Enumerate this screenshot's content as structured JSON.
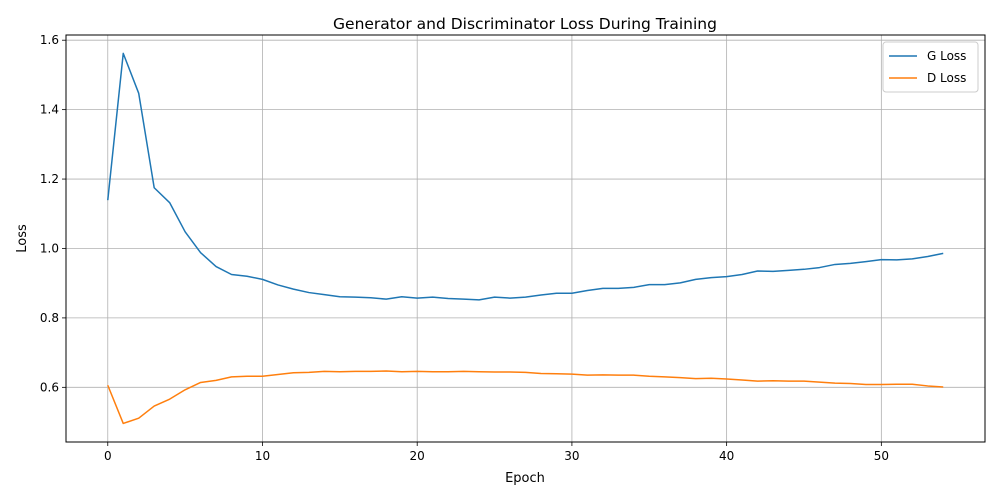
{
  "chart_data": {
    "type": "line",
    "title": "Generator and Discriminator Loss During Training",
    "xlabel": "Epoch",
    "ylabel": "Loss",
    "xlim": [
      -2.7,
      56.7
    ],
    "ylim": [
      0.4425,
      1.615
    ],
    "xticks": [
      0,
      10,
      20,
      30,
      40,
      50
    ],
    "yticks": [
      0.6,
      0.8,
      1.0,
      1.2,
      1.4,
      1.6
    ],
    "ytick_labels": [
      "0.6",
      "0.8",
      "1.0",
      "1.2",
      "1.4",
      "1.6"
    ],
    "grid": true,
    "legend_position": "top-right",
    "x": [
      0,
      1,
      2,
      3,
      4,
      5,
      6,
      7,
      8,
      9,
      10,
      11,
      12,
      13,
      14,
      15,
      16,
      17,
      18,
      19,
      20,
      21,
      22,
      23,
      24,
      25,
      26,
      27,
      28,
      29,
      30,
      31,
      32,
      33,
      34,
      35,
      36,
      37,
      38,
      39,
      40,
      41,
      42,
      43,
      44,
      45,
      46,
      47,
      48,
      49,
      50,
      51,
      52,
      53,
      54
    ],
    "series": [
      {
        "name": "G Loss",
        "color": "#1f77b4",
        "values": [
          1.139,
          1.562,
          1.447,
          1.175,
          1.132,
          1.048,
          0.988,
          0.948,
          0.925,
          0.92,
          0.911,
          0.895,
          0.883,
          0.873,
          0.867,
          0.861,
          0.86,
          0.858,
          0.854,
          0.861,
          0.857,
          0.86,
          0.856,
          0.854,
          0.852,
          0.86,
          0.857,
          0.86,
          0.866,
          0.871,
          0.871,
          0.879,
          0.885,
          0.885,
          0.888,
          0.896,
          0.896,
          0.901,
          0.911,
          0.916,
          0.919,
          0.925,
          0.935,
          0.934,
          0.937,
          0.94,
          0.945,
          0.954,
          0.957,
          0.962,
          0.968,
          0.967,
          0.97,
          0.977,
          0.986
        ]
      },
      {
        "name": "D Loss",
        "color": "#ff7f0e",
        "values": [
          0.606,
          0.496,
          0.511,
          0.546,
          0.566,
          0.593,
          0.614,
          0.62,
          0.63,
          0.632,
          0.632,
          0.637,
          0.642,
          0.643,
          0.646,
          0.645,
          0.646,
          0.646,
          0.647,
          0.645,
          0.646,
          0.645,
          0.645,
          0.646,
          0.645,
          0.644,
          0.644,
          0.643,
          0.64,
          0.639,
          0.638,
          0.635,
          0.636,
          0.635,
          0.635,
          0.632,
          0.63,
          0.628,
          0.625,
          0.626,
          0.624,
          0.621,
          0.618,
          0.619,
          0.618,
          0.618,
          0.615,
          0.612,
          0.611,
          0.608,
          0.608,
          0.609,
          0.609,
          0.604,
          0.601
        ]
      }
    ]
  }
}
